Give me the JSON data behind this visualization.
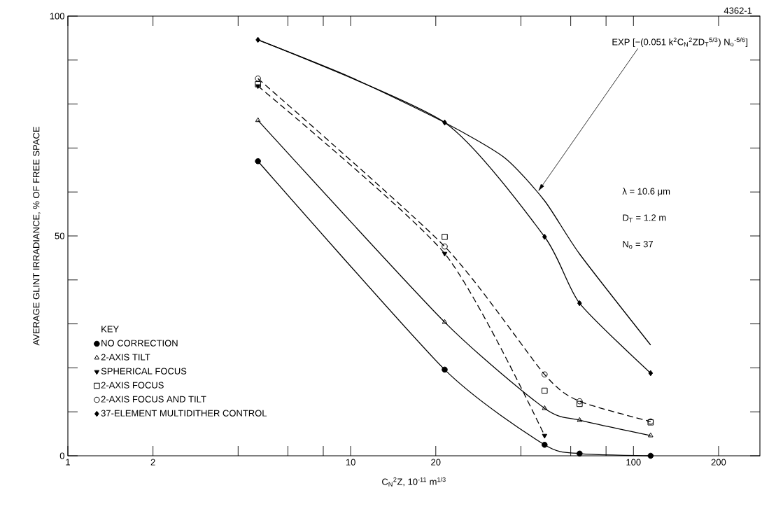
{
  "chart_data": {
    "type": "line",
    "xlabel": "C$_{N}$$^{2}$Z, 10$^{-11}$ m$^{1/3}$",
    "ylabel": "AVERAGE GLINT IRRADIANCE, % OF FREE SPACE",
    "legend_title": "KEY",
    "x": [
      4.7,
      21.5,
      48.5,
      64.5,
      115
    ],
    "series": [
      {
        "name": "NO CORRECTION",
        "color": "#000000",
        "marker": "circle",
        "line_style": "solid",
        "values": [
          67.0,
          19.6,
          2.5,
          0.5,
          0
        ]
      },
      {
        "name": "2-AXIS TILT",
        "color": "#000000",
        "marker": "triangle-open",
        "line_style": "solid",
        "values": [
          76.3,
          30.4,
          10.8,
          8.1,
          4.6
        ]
      },
      {
        "name": "SPHERICAL FOCUS",
        "color": "#000000",
        "marker": "triangle-down",
        "line_style": "dashed",
        "values": [
          84.1,
          46.0,
          4.6,
          null,
          null
        ]
      },
      {
        "name": "2-AXIS FOCUS",
        "type": "scatter",
        "color": "#000000",
        "marker": "square-open",
        "values": [
          84.5,
          49.8,
          14.8,
          11.8,
          7.6
        ]
      },
      {
        "name": "2-AXIS FOCUS AND TILT",
        "color": "#000000",
        "marker": "circle-open",
        "line_style": "dashed",
        "values": [
          85.8,
          47.6,
          18.5,
          12.4,
          7.8
        ]
      },
      {
        "name": "37-ELEMENT MULTIDITHER CONTROL",
        "color": "#000000",
        "marker": "diamond",
        "line_style": "solid",
        "values": [
          94.6,
          75.8,
          49.8,
          34.7,
          18.8
        ]
      },
      {
        "color": "#000000",
        "marker": "none",
        "line_style": "solid",
        "x": [
          4.7,
          10,
          21.5,
          35,
          48.5,
          64.5,
          115
        ],
        "values": [
          94.6,
          86.1,
          75.8,
          67.8,
          58,
          45.9,
          25.2
        ]
      }
    ],
    "annotations": [
      "EXP [−(0.051 k$^{2}$C$_{N}$$^{2}$ZD$_{T}$$^{5/3}$) N$_{o}$$^{-5/6}$]",
      "λ = 10.6 μm",
      "D$_{T}$ = 1.2 m",
      "N$_{o}$ = 37",
      "4362-1"
    ],
    "log": "x",
    "xlim": [
      1,
      280
    ],
    "xticks": [
      1,
      2,
      {
        "value": 4,
        "label": null
      },
      {
        "value": 6,
        "label": null
      },
      {
        "value": 8,
        "label": null
      },
      10,
      20,
      {
        "value": 40,
        "label": null
      },
      {
        "value": 60,
        "label": null
      },
      {
        "value": 80,
        "label": null
      },
      100,
      200
    ],
    "ylim": [
      0,
      100
    ],
    "yticks": [
      0,
      {
        "value": 10,
        "label": null
      },
      {
        "value": 20,
        "label": null
      },
      {
        "value": 30,
        "label": null
      },
      {
        "value": 40,
        "label": null
      },
      50,
      {
        "value": 60,
        "label": null
      },
      {
        "value": 70,
        "label": null
      },
      {
        "value": 80,
        "label": null
      },
      {
        "value": 90,
        "label": null
      },
      100
    ],
    "grid": false,
    "legend": "bottom left"
  }
}
